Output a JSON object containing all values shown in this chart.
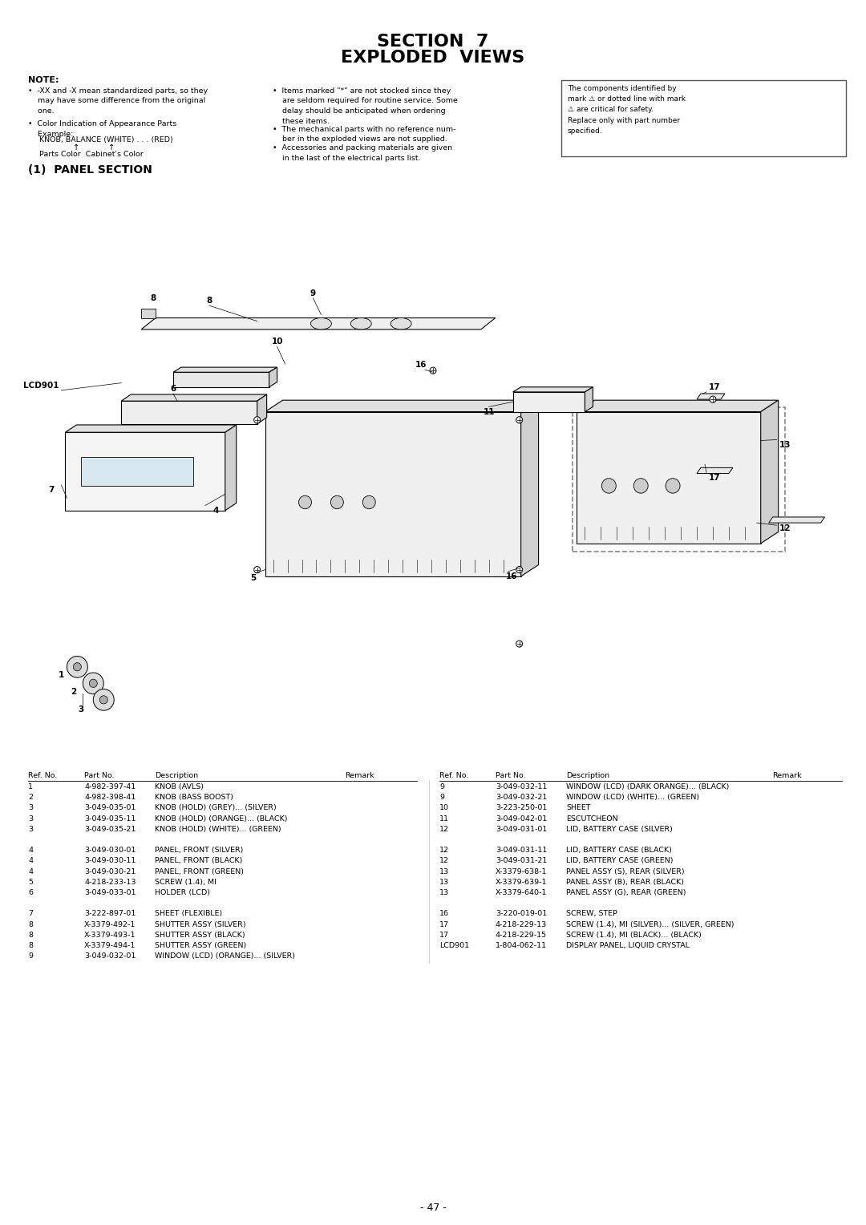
{
  "title_line1": "SECTION  7",
  "title_line2": "EXPLODED  VIEWS",
  "section_label": "(1)  PANEL SECTION",
  "page_number": "- 47 -",
  "note_header": "NOTE:",
  "bg_color": "#ffffff",
  "text_color": "#000000",
  "font_size_title": 16,
  "font_size_body": 7.5,
  "font_size_note": 7.0,
  "parts_left": [
    [
      "1",
      "4-982-397-41",
      "KNOB (AVLS)"
    ],
    [
      "2",
      "4-982-398-41",
      "KNOB (BASS BOOST)"
    ],
    [
      "3",
      "3-049-035-01",
      "KNOB (HOLD) (GREY)... (SILVER)"
    ],
    [
      "3",
      "3-049-035-11",
      "KNOB (HOLD) (ORANGE)... (BLACK)"
    ],
    [
      "3",
      "3-049-035-21",
      "KNOB (HOLD) (WHITE)... (GREEN)"
    ],
    [
      "",
      "",
      ""
    ],
    [
      "4",
      "3-049-030-01",
      "PANEL, FRONT (SILVER)"
    ],
    [
      "4",
      "3-049-030-11",
      "PANEL, FRONT (BLACK)"
    ],
    [
      "4",
      "3-049-030-21",
      "PANEL, FRONT (GREEN)"
    ],
    [
      "5",
      "4-218-233-13",
      "SCREW (1.4), MI"
    ],
    [
      "6",
      "3-049-033-01",
      "HOLDER (LCD)"
    ],
    [
      "",
      "",
      ""
    ],
    [
      "7",
      "3-222-897-01",
      "SHEET (FLEXIBLE)"
    ],
    [
      "8",
      "X-3379-492-1",
      "SHUTTER ASSY (SILVER)"
    ],
    [
      "8",
      "X-3379-493-1",
      "SHUTTER ASSY (BLACK)"
    ],
    [
      "8",
      "X-3379-494-1",
      "SHUTTER ASSY (GREEN)"
    ],
    [
      "9",
      "3-049-032-01",
      "WINDOW (LCD) (ORANGE)... (SILVER)"
    ]
  ],
  "parts_right": [
    [
      "9",
      "3-049-032-11",
      "WINDOW (LCD) (DARK ORANGE)... (BLACK)"
    ],
    [
      "9",
      "3-049-032-21",
      "WINDOW (LCD) (WHITE)... (GREEN)"
    ],
    [
      "10",
      "3-223-250-01",
      "SHEET"
    ],
    [
      "11",
      "3-049-042-01",
      "ESCUTCHEON"
    ],
    [
      "12",
      "3-049-031-01",
      "LID, BATTERY CASE (SILVER)"
    ],
    [
      "",
      "",
      ""
    ],
    [
      "12",
      "3-049-031-11",
      "LID, BATTERY CASE (BLACK)"
    ],
    [
      "12",
      "3-049-031-21",
      "LID, BATTERY CASE (GREEN)"
    ],
    [
      "13",
      "X-3379-638-1",
      "PANEL ASSY (S), REAR (SILVER)"
    ],
    [
      "13",
      "X-3379-639-1",
      "PANEL ASSY (B), REAR (BLACK)"
    ],
    [
      "13",
      "X-3379-640-1",
      "PANEL ASSY (G), REAR (GREEN)"
    ],
    [
      "",
      "",
      ""
    ],
    [
      "16",
      "3-220-019-01",
      "SCREW, STEP"
    ],
    [
      "17",
      "4-218-229-13",
      "SCREW (1.4), MI (SILVER)... (SILVER, GREEN)"
    ],
    [
      "17",
      "4-218-229-15",
      "SCREW (1.4), MI (BLACK)... (BLACK)"
    ],
    [
      "LCD901",
      "1-804-062-11",
      "DISPLAY PANEL, LIQUID CRYSTAL"
    ]
  ]
}
